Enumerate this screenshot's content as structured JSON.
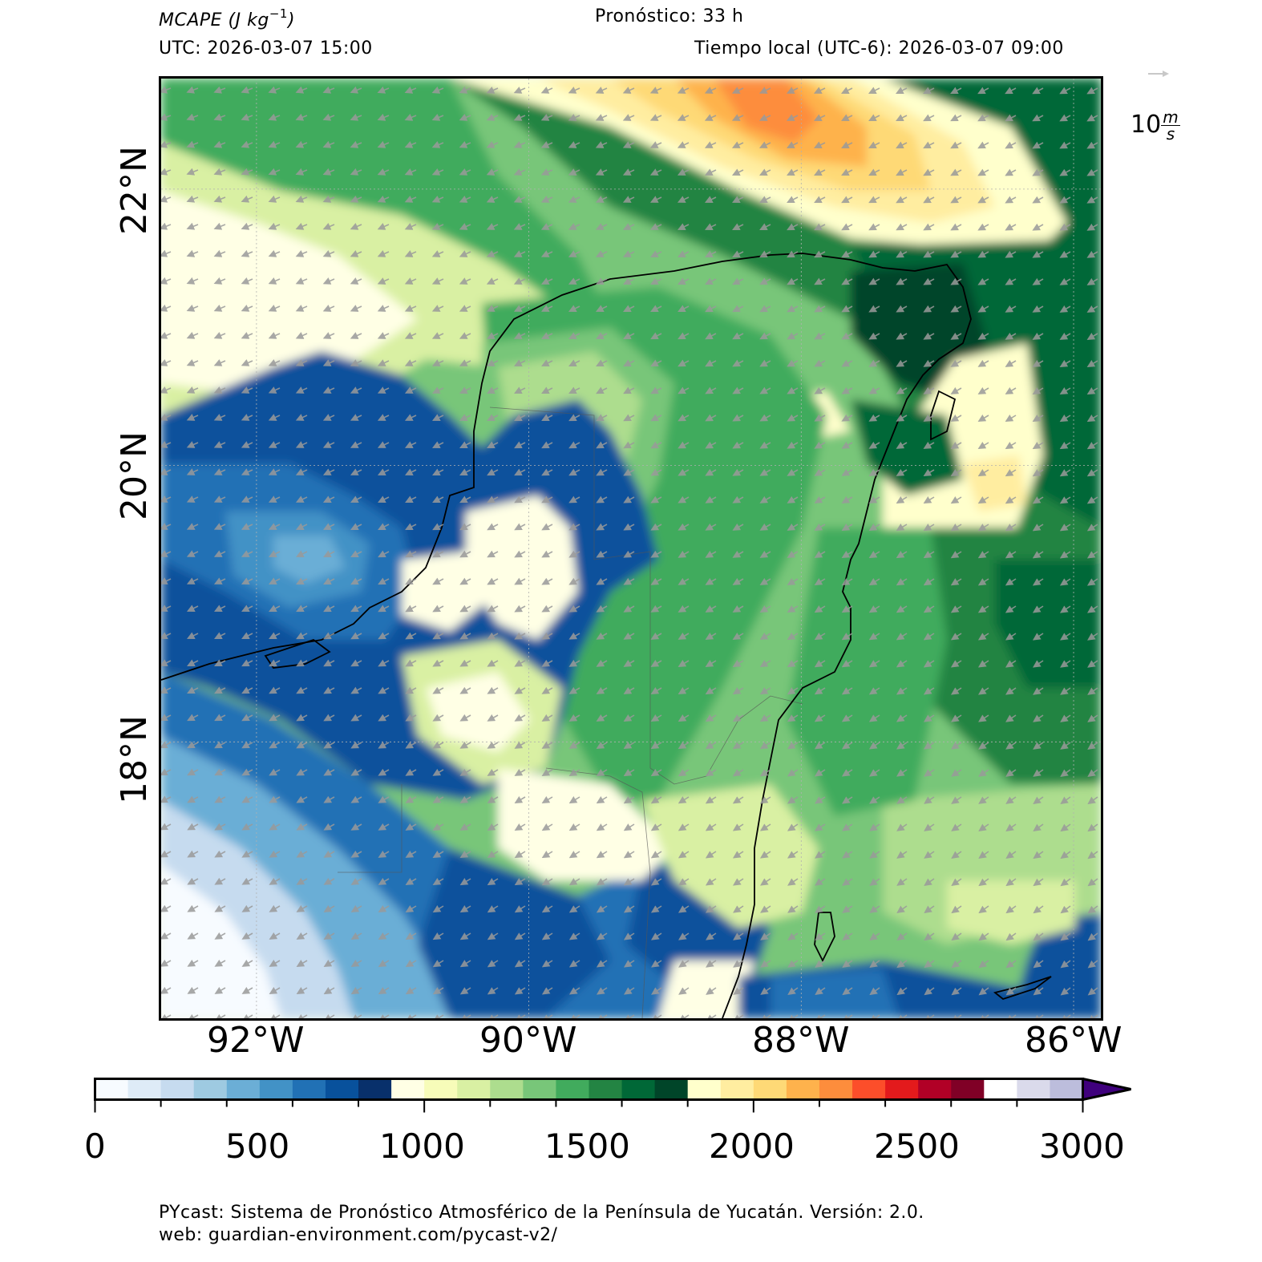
{
  "header": {
    "variable_label": "MCAPE (J kg",
    "variable_exponent": "−1",
    "variable_close": ")",
    "forecast": "Pronóstico: 33 h",
    "utc": "UTC:  2026-03-07 15:00",
    "local_time": "Tiempo local (UTC-6): 2026-03-07 09:00"
  },
  "map": {
    "lat_labels": [
      "22°N",
      "20°N",
      "18°N"
    ],
    "lon_labels": [
      "92°W",
      "90°W",
      "88°W",
      "86°W"
    ],
    "extent": {
      "lon_min": -92.7,
      "lon_max": -85.8,
      "lat_min": 16.0,
      "lat_max": 22.8
    },
    "wind_key": {
      "value": "10",
      "unit_num": "m",
      "unit_den": "s"
    },
    "land_outline_color": "#000000",
    "arrow_color": "#9a9a9a"
  },
  "colorbar": {
    "min": 0,
    "max": 3000,
    "step": 100,
    "tick_labels": [
      "0",
      "500",
      "1000",
      "1500",
      "2000",
      "2500",
      "3000"
    ],
    "colors": [
      "#f7fbff",
      "#f7fbff",
      "#deebf7",
      "#c6dbef",
      "#9ecae1",
      "#6baed6",
      "#4292c6",
      "#2171b5",
      "#08519c",
      "#08306b",
      "#ffffe5",
      "#f7fcb9",
      "#d9f0a3",
      "#addd8e",
      "#78c679",
      "#41ab5d",
      "#238443",
      "#006837",
      "#004529",
      "#ffffcc",
      "#ffeda0",
      "#fed976",
      "#feb24c",
      "#fd8d3c",
      "#fc4e2a",
      "#e31a1c",
      "#b10026",
      "#800026",
      "#ffffff",
      "#dadaeb",
      "#bcbddc",
      "#9e9ac8",
      "#807dba",
      "#6a51a3",
      "#4a1486",
      "#3f007d"
    ],
    "extend": "max"
  },
  "footer": {
    "line1": "PYcast: Sistema de Pronóstico Atmosférico de la Península de Yucatán. Versión: 2.0.",
    "line2": "web: guardian-environment.com/pycast-v2/"
  }
}
